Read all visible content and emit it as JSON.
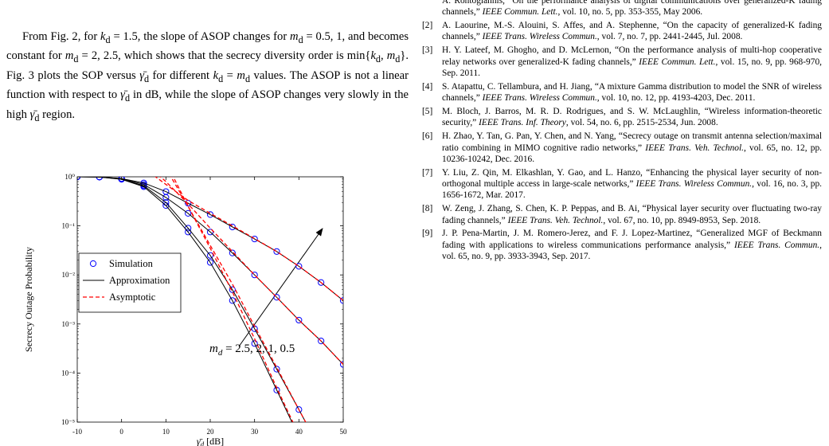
{
  "paragraph": [
    "From Fig. 2, for ",
    {
      "v": "k",
      "sub": "d"
    },
    " = 1.5, the slope of ASOP changes for ",
    {
      "v": "m",
      "sub": "d"
    },
    " = 0.5, 1, and becomes constant for ",
    {
      "v": "m",
      "sub": "d"
    },
    " = 2, 2.5, which shows that the secrecy diversity order is min{",
    {
      "v": "k",
      "sub": "d"
    },
    ", ",
    {
      "v": "m",
      "sub": "d"
    },
    "}. Fig. 3 plots the SOP versus ",
    {
      "v": "γ̄",
      "sub": "d"
    },
    " for different ",
    {
      "v": "k",
      "sub": "d"
    },
    " = ",
    {
      "v": "m",
      "sub": "d"
    },
    " values. The ASOP is not a linear function with respect to ",
    {
      "v": "γ̄",
      "sub": "d"
    },
    " in dB, while the slope of ASOP changes very slowly in the high ",
    {
      "v": "γ̄",
      "sub": "d"
    },
    " region."
  ],
  "references": [
    {
      "pre": "A. Rontogiannis, “On the performance analysis of digital communications over generalized-K fading channels,” ",
      "journal": "IEEE Commun. Lett.",
      "post": ", vol. 10, no. 5, pp. 353-355, May 2006."
    },
    {
      "num": "[2]",
      "pre": "A. Laourine, M.-S. Alouini, S. Affes, and A. Stephenne, “On the capacity of generalized-K fading channels,” ",
      "journal": "IEEE Trans. Wireless Commun.",
      "post": ", vol. 7, no. 7, pp. 2441-2445, Jul. 2008."
    },
    {
      "num": "[3]",
      "pre": "H. Y. Lateef, M. Ghogho, and D. McLernon, “On the performance analysis of multi-hop cooperative relay networks over generalized-K fading channels,” ",
      "journal": "IEEE Commun. Lett.",
      "post": ", vol. 15, no. 9, pp. 968-970, Sep. 2011."
    },
    {
      "num": "[4]",
      "pre": "S. Atapattu, C. Tellambura, and H. Jiang, “A mixture Gamma distribution to model the SNR of wireless channels,” ",
      "journal": "IEEE Trans. Wireless Commun.",
      "post": ", vol. 10, no. 12, pp. 4193-4203, Dec. 2011."
    },
    {
      "num": "[5]",
      "pre": "M. Bloch, J. Barros, M. R. D. Rodrigues, and S. W. McLaughlin, “Wireless information-theoretic security,” ",
      "journal": "IEEE Trans. Inf. Theory",
      "post": ", vol. 54, no. 6, pp. 2515-2534, Jun. 2008."
    },
    {
      "num": "[6]",
      "pre": "H. Zhao, Y. Tan, G. Pan, Y. Chen, and N. Yang, “Secrecy outage on transmit antenna selection/maximal ratio combining in MIMO cognitive radio networks,” ",
      "journal": "IEEE Trans. Veh. Technol.",
      "post": ", vol. 65, no. 12, pp. 10236-10242, Dec. 2016."
    },
    {
      "num": "[7]",
      "pre": "Y. Liu, Z. Qin, M. Elkashlan, Y. Gao, and L. Hanzo, “Enhancing the physical layer security of non-orthogonal multiple access in large-scale networks,” ",
      "journal": "IEEE Trans. Wireless Commun.",
      "post": ", vol. 16, no. 3, pp. 1656-1672, Mar. 2017."
    },
    {
      "num": "[8]",
      "pre": "W. Zeng, J. Zhang, S. Chen, K. P. Peppas, and B. Ai, “Physical layer security over fluctuating two-ray fading channels,” ",
      "journal": "IEEE Trans. Veh. Technol.",
      "post": ", vol. 67, no. 10, pp. 8949-8953, Sep. 2018."
    },
    {
      "num": "[9]",
      "pre": "J. P. Pena-Martin, J. M. Romero-Jerez, and F. J. Lopez-Martinez, “Generalized MGF of Beckmann fading with applications to wireless communications performance analysis,” ",
      "journal": "IEEE Trans. Commun.",
      "post": ", vol. 65, no. 9, pp. 3933-3943, Sep. 2017."
    }
  ],
  "chart_data": {
    "type": "line",
    "log_y": true,
    "grid": false,
    "y_label": "Secrecy Outage Probability",
    "x_label": {
      "v": "γ̄",
      "sub": "d",
      "text": " [dB]"
    },
    "annotation": {
      "v": "m",
      "sub": "d",
      "text": " = 2.5, 2, 1, 0.5"
    },
    "x": [
      -10,
      -5,
      0,
      5,
      10,
      15,
      20,
      25,
      30,
      35,
      40,
      45,
      50
    ],
    "xlim": [
      -10,
      50
    ],
    "xticks": [
      -10,
      0,
      10,
      20,
      30,
      40,
      50
    ],
    "ylim": [
      1e-05,
      1
    ],
    "yticks": [
      {
        "value": 1,
        "label": "10⁰"
      },
      {
        "value": 0.1,
        "label": "10⁻¹"
      },
      {
        "value": 0.01,
        "label": "10⁻²"
      },
      {
        "value": 0.001,
        "label": "10⁻³"
      },
      {
        "value": 0.0001,
        "label": "10⁻⁴"
      },
      {
        "value": 1e-05,
        "label": "10⁻⁵"
      }
    ],
    "series": [
      {
        "name": "Simulation",
        "color": "#0000ff",
        "style": "marker",
        "curves": [
          [
            1,
            0.99,
            0.92,
            0.75,
            0.5,
            0.29,
            0.17,
            0.095,
            0.054,
            0.03,
            0.015,
            0.007,
            0.003
          ],
          [
            1,
            0.99,
            0.92,
            0.7,
            0.38,
            0.18,
            0.075,
            0.028,
            0.01,
            0.0035,
            0.0012,
            0.00045,
            0.00015
          ],
          [
            1,
            0.99,
            0.9,
            0.66,
            0.3,
            0.09,
            0.025,
            0.005,
            0.0008,
            0.00012,
            1.8e-05,
            null,
            null
          ],
          [
            1,
            0.99,
            0.89,
            0.63,
            0.26,
            0.075,
            0.018,
            0.003,
            0.0004,
            4.5e-05,
            null,
            null,
            null
          ]
        ]
      },
      {
        "name": "Approximation",
        "color": "#000000",
        "style": "solid",
        "curves": [
          [
            1,
            0.99,
            0.92,
            0.75,
            0.5,
            0.29,
            0.17,
            0.095,
            0.054,
            0.03,
            0.015,
            0.007,
            0.003
          ],
          [
            1,
            0.99,
            0.92,
            0.7,
            0.38,
            0.18,
            0.075,
            0.028,
            0.01,
            0.0035,
            0.0012,
            0.00045,
            0.00015
          ],
          [
            1,
            0.99,
            0.9,
            0.66,
            0.3,
            0.09,
            0.025,
            0.005,
            0.0008,
            0.00012,
            1.8e-05,
            2.6e-06,
            null
          ],
          [
            1,
            0.99,
            0.89,
            0.63,
            0.26,
            0.075,
            0.018,
            0.003,
            0.0004,
            4.5e-05,
            5e-06,
            null,
            null
          ]
        ]
      },
      {
        "name": "Asymptotic",
        "color": "#ff0000",
        "style": "dashed",
        "curves": [
          [
            null,
            null,
            null,
            1.5,
            0.7,
            0.33,
            0.18,
            0.1,
            0.055,
            0.03,
            0.015,
            0.007,
            0.003
          ],
          [
            null,
            null,
            null,
            2,
            0.8,
            0.28,
            0.09,
            0.03,
            0.01,
            0.0035,
            0.0012,
            0.00045,
            0.00015
          ],
          [
            null,
            null,
            null,
            null,
            1.5,
            0.25,
            0.04,
            0.0065,
            0.0009,
            0.00013,
            1.8e-05,
            2.6e-06,
            null
          ],
          [
            null,
            null,
            null,
            null,
            2,
            0.25,
            0.035,
            0.0045,
            0.0005,
            5e-05,
            5.5e-06,
            null,
            null
          ]
        ]
      }
    ]
  }
}
